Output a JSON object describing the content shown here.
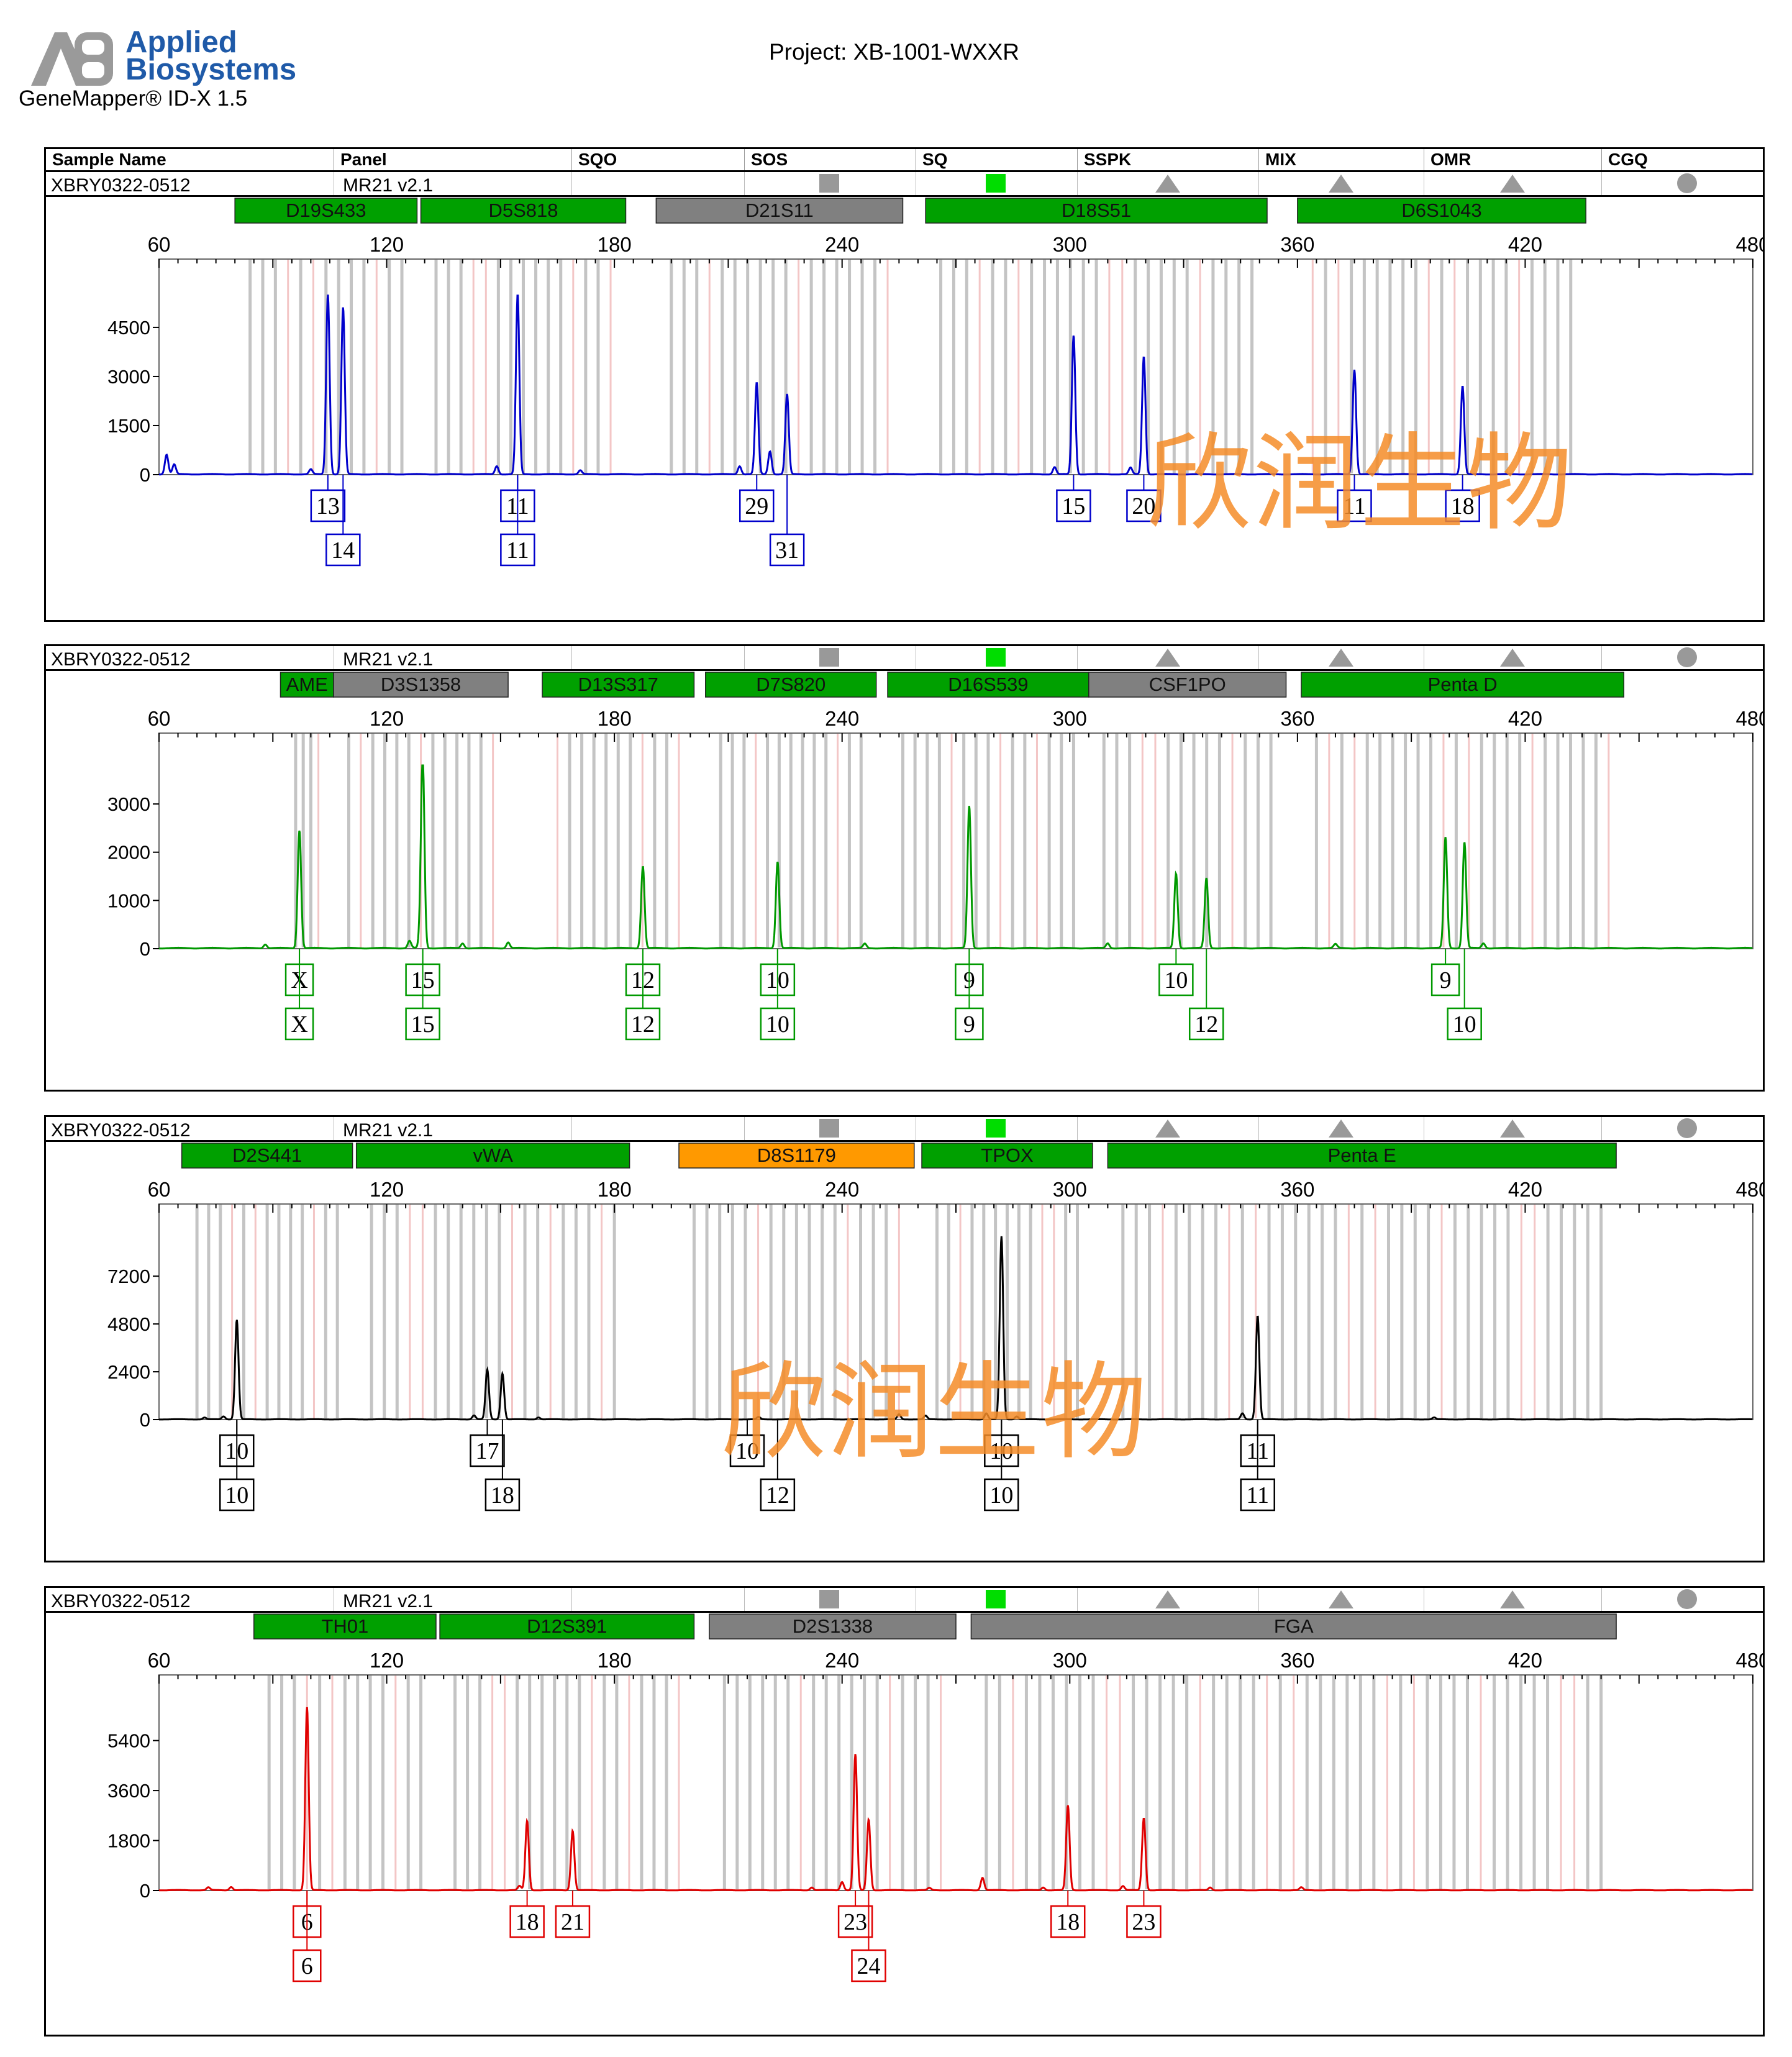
{
  "header": {
    "brand": "Applied\nBiosystems",
    "brand_line1": "Applied",
    "brand_line2": "Biosystems",
    "software": "GeneMapper® ID-X  1.5",
    "project": "Project: XB-1001-WXXR",
    "columns": [
      "Sample Name",
      "Panel",
      "SQO",
      "SOS",
      "SQ",
      "SSPK",
      "MIX",
      "OMR",
      "CGQ"
    ]
  },
  "watermark": "欣润生物",
  "colors": {
    "blue": "#0000cc",
    "green": "#009900",
    "black": "#000000",
    "red": "#e00000",
    "marker_green": "#00a000",
    "marker_gray": "#808080",
    "marker_orange": "#ff9900",
    "qc_gray": "#999999",
    "qc_green": "#00dd00",
    "brand": "#1f5aa8"
  },
  "chart_data": [
    {
      "type": "line",
      "sample_name": "XBRY0322-0512",
      "panel_name": "MR21_v2.1",
      "panel_label": "MR21_v2.1",
      "color": "#0000cc",
      "xlim": [
        60,
        480
      ],
      "x_ticks": [
        60,
        120,
        180,
        240,
        300,
        360,
        420,
        480
      ],
      "ylim": [
        0,
        5600
      ],
      "y_ticks": [
        0,
        1500,
        3000,
        4500
      ],
      "markers": [
        {
          "name": "D19S433",
          "start": 80,
          "end": 128,
          "color": "green"
        },
        {
          "name": "D5S818",
          "start": 129,
          "end": 183,
          "color": "green"
        },
        {
          "name": "D21S11",
          "start": 191,
          "end": 256,
          "color": "gray"
        },
        {
          "name": "D18S51",
          "start": 262,
          "end": 352,
          "color": "green"
        },
        {
          "name": "D6S1043",
          "start": 360,
          "end": 436,
          "color": "green"
        }
      ],
      "peaks": [
        {
          "x": 104.5,
          "y": 5500
        },
        {
          "x": 108.5,
          "y": 5100
        },
        {
          "x": 154.5,
          "y": 5500
        },
        {
          "x": 217.5,
          "y": 2800
        },
        {
          "x": 221.0,
          "y": 700
        },
        {
          "x": 225.5,
          "y": 2450
        },
        {
          "x": 171,
          "y": 120
        },
        {
          "x": 62,
          "y": 600
        },
        {
          "x": 64,
          "y": 300
        },
        {
          "x": 100,
          "y": 150
        },
        {
          "x": 149,
          "y": 250
        },
        {
          "x": 213,
          "y": 250
        },
        {
          "x": 296,
          "y": 220
        },
        {
          "x": 301.0,
          "y": 4250
        },
        {
          "x": 319.5,
          "y": 3600
        },
        {
          "x": 316,
          "y": 200
        },
        {
          "x": 375.0,
          "y": 3200
        },
        {
          "x": 403.5,
          "y": 2700
        }
      ],
      "allele_labels": [
        {
          "x": 104.5,
          "text": "13",
          "row": 1
        },
        {
          "x": 108.5,
          "text": "14",
          "row": 2
        },
        {
          "x": 154.5,
          "text": "11",
          "row": 1
        },
        {
          "x": 154.5,
          "text": "11",
          "row": 2
        },
        {
          "x": 217.5,
          "text": "29",
          "row": 1
        },
        {
          "x": 225.5,
          "text": "31",
          "row": 2
        },
        {
          "x": 301.0,
          "text": "15",
          "row": 1
        },
        {
          "x": 319.5,
          "text": "20",
          "row": 1
        },
        {
          "x": 375.0,
          "text": "11",
          "row": 1
        },
        {
          "x": 403.5,
          "text": "18",
          "row": 1
        }
      ]
    },
    {
      "type": "line",
      "sample_name": "XBRY0322-0512",
      "panel_name": "MR21_v2.1",
      "panel_label": "MR21_v2.1",
      "color": "#009900",
      "xlim": [
        60,
        480
      ],
      "x_ticks": [
        60,
        120,
        180,
        240,
        300,
        360,
        420,
        480
      ],
      "ylim": [
        0,
        3800
      ],
      "y_ticks": [
        0,
        1000,
        2000,
        3000
      ],
      "markers": [
        {
          "name": "AME",
          "start": 92,
          "end": 106,
          "color": "green"
        },
        {
          "name": "D3S1358",
          "start": 106,
          "end": 152,
          "color": "gray"
        },
        {
          "name": "D13S317",
          "start": 161,
          "end": 201,
          "color": "green"
        },
        {
          "name": "D7S820",
          "start": 204,
          "end": 249,
          "color": "green"
        },
        {
          "name": "D16S539",
          "start": 252,
          "end": 305,
          "color": "green"
        },
        {
          "name": "CSF1PO",
          "start": 305,
          "end": 357,
          "color": "gray"
        },
        {
          "name": "Penta D",
          "start": 361,
          "end": 446,
          "color": "green"
        }
      ],
      "peaks": [
        {
          "x": 97.0,
          "y": 2450
        },
        {
          "x": 129.5,
          "y": 3800
        },
        {
          "x": 129,
          "y": 350
        },
        {
          "x": 126,
          "y": 150
        },
        {
          "x": 187.5,
          "y": 1700
        },
        {
          "x": 223.0,
          "y": 1800
        },
        {
          "x": 273.5,
          "y": 2950
        },
        {
          "x": 88,
          "y": 80
        },
        {
          "x": 140,
          "y": 100
        },
        {
          "x": 152,
          "y": 120
        },
        {
          "x": 246,
          "y": 90
        },
        {
          "x": 310,
          "y": 100
        },
        {
          "x": 370,
          "y": 80
        },
        {
          "x": 409,
          "y": 100
        },
        {
          "x": 328.0,
          "y": 1550
        },
        {
          "x": 336.0,
          "y": 1450
        },
        {
          "x": 399.0,
          "y": 2300
        },
        {
          "x": 404.0,
          "y": 2200
        }
      ],
      "allele_labels": [
        {
          "x": 97.0,
          "text": "X",
          "row": 1
        },
        {
          "x": 97.0,
          "text": "X",
          "row": 2
        },
        {
          "x": 129.5,
          "text": "15",
          "row": 1
        },
        {
          "x": 129.5,
          "text": "15",
          "row": 2
        },
        {
          "x": 187.5,
          "text": "12",
          "row": 1
        },
        {
          "x": 187.5,
          "text": "12",
          "row": 2
        },
        {
          "x": 223.0,
          "text": "10",
          "row": 1
        },
        {
          "x": 223.0,
          "text": "10",
          "row": 2
        },
        {
          "x": 273.5,
          "text": "9",
          "row": 1
        },
        {
          "x": 273.5,
          "text": "9",
          "row": 2
        },
        {
          "x": 328.0,
          "text": "10",
          "row": 1
        },
        {
          "x": 336.0,
          "text": "12",
          "row": 2
        },
        {
          "x": 399.0,
          "text": "9",
          "row": 1
        },
        {
          "x": 404.0,
          "text": "10",
          "row": 2
        }
      ]
    },
    {
      "type": "line",
      "sample_name": "XBRY0322-0512",
      "panel_name": "MR21_v2.1",
      "panel_label": "MR21_v2.1",
      "color": "#000000",
      "xlim": [
        60,
        480
      ],
      "x_ticks": [
        60,
        120,
        180,
        240,
        300,
        360,
        420,
        480
      ],
      "ylim": [
        0,
        9200
      ],
      "y_ticks": [
        0,
        2400,
        4800,
        7200
      ],
      "markers": [
        {
          "name": "D2S441",
          "start": 66,
          "end": 111,
          "color": "green"
        },
        {
          "name": "vWA",
          "start": 112,
          "end": 184,
          "color": "green"
        },
        {
          "name": "D8S1179",
          "start": 197,
          "end": 259,
          "color": "orange"
        },
        {
          "name": "TPOX",
          "start": 261,
          "end": 306,
          "color": "green"
        },
        {
          "name": "Penta E",
          "start": 310,
          "end": 444,
          "color": "green"
        }
      ],
      "peaks": [
        {
          "x": 80.5,
          "y": 5000
        },
        {
          "x": 146.5,
          "y": 2500
        },
        {
          "x": 150.5,
          "y": 2300
        },
        {
          "x": 72,
          "y": 90
        },
        {
          "x": 77,
          "y": 150
        },
        {
          "x": 143,
          "y": 200
        },
        {
          "x": 160,
          "y": 100
        },
        {
          "x": 255,
          "y": 250
        },
        {
          "x": 262,
          "y": 180
        },
        {
          "x": 218,
          "y": 120
        },
        {
          "x": 282.0,
          "y": 9200
        },
        {
          "x": 278,
          "y": 300
        },
        {
          "x": 286,
          "y": 150
        },
        {
          "x": 349.5,
          "y": 5200
        },
        {
          "x": 345.5,
          "y": 300
        },
        {
          "x": 396,
          "y": 90
        }
      ],
      "allele_labels": [
        {
          "x": 80.5,
          "text": "10",
          "row": 1
        },
        {
          "x": 80.5,
          "text": "10",
          "row": 2
        },
        {
          "x": 146.5,
          "text": "17",
          "row": 1
        },
        {
          "x": 150.5,
          "text": "18",
          "row": 2
        },
        {
          "x": 215.0,
          "text": "10",
          "row": 1
        },
        {
          "x": 223.0,
          "text": "12",
          "row": 2
        },
        {
          "x": 282.0,
          "text": "10",
          "row": 1
        },
        {
          "x": 282.0,
          "text": "10",
          "row": 2
        },
        {
          "x": 349.5,
          "text": "11",
          "row": 1
        },
        {
          "x": 349.5,
          "text": "11",
          "row": 2
        }
      ]
    },
    {
      "type": "line",
      "sample_name": "XBRY0322-0512",
      "panel_name": "MR21_v2.1",
      "panel_label": "MR21_v2.1",
      "color": "#e00000",
      "xlim": [
        60,
        480
      ],
      "x_ticks": [
        60,
        120,
        180,
        240,
        300,
        360,
        420,
        480
      ],
      "ylim": [
        0,
        6600
      ],
      "y_ticks": [
        0,
        1800,
        3600,
        5400
      ],
      "markers": [
        {
          "name": "TH01",
          "start": 85,
          "end": 133,
          "color": "green"
        },
        {
          "name": "D12S391",
          "start": 134,
          "end": 201,
          "color": "green"
        },
        {
          "name": "D2S1338",
          "start": 205,
          "end": 270,
          "color": "gray"
        },
        {
          "name": "FGA",
          "start": 274,
          "end": 444,
          "color": "gray"
        }
      ],
      "peaks": [
        {
          "x": 99.0,
          "y": 6600
        },
        {
          "x": 157.0,
          "y": 2500
        },
        {
          "x": 169.0,
          "y": 2150
        },
        {
          "x": 73,
          "y": 100
        },
        {
          "x": 79,
          "y": 120
        },
        {
          "x": 155,
          "y": 150
        },
        {
          "x": 232,
          "y": 100
        },
        {
          "x": 240,
          "y": 300
        },
        {
          "x": 263,
          "y": 80
        },
        {
          "x": 243.5,
          "y": 4900
        },
        {
          "x": 247.0,
          "y": 2550
        },
        {
          "x": 277.0,
          "y": 450
        },
        {
          "x": 293,
          "y": 100
        },
        {
          "x": 299.5,
          "y": 3050
        },
        {
          "x": 314,
          "y": 150
        },
        {
          "x": 319.5,
          "y": 2600
        },
        {
          "x": 337,
          "y": 100
        },
        {
          "x": 361,
          "y": 100
        }
      ],
      "allele_labels": [
        {
          "x": 99.0,
          "text": "6",
          "row": 1
        },
        {
          "x": 99.0,
          "text": "6",
          "row": 2
        },
        {
          "x": 157.0,
          "text": "18",
          "row": 1
        },
        {
          "x": 169.0,
          "text": "21",
          "row": 1
        },
        {
          "x": 243.5,
          "text": "23",
          "row": 1
        },
        {
          "x": 247.0,
          "text": "24",
          "row": 2
        },
        {
          "x": 299.5,
          "text": "18",
          "row": 1
        },
        {
          "x": 319.5,
          "text": "23",
          "row": 1
        }
      ]
    }
  ]
}
